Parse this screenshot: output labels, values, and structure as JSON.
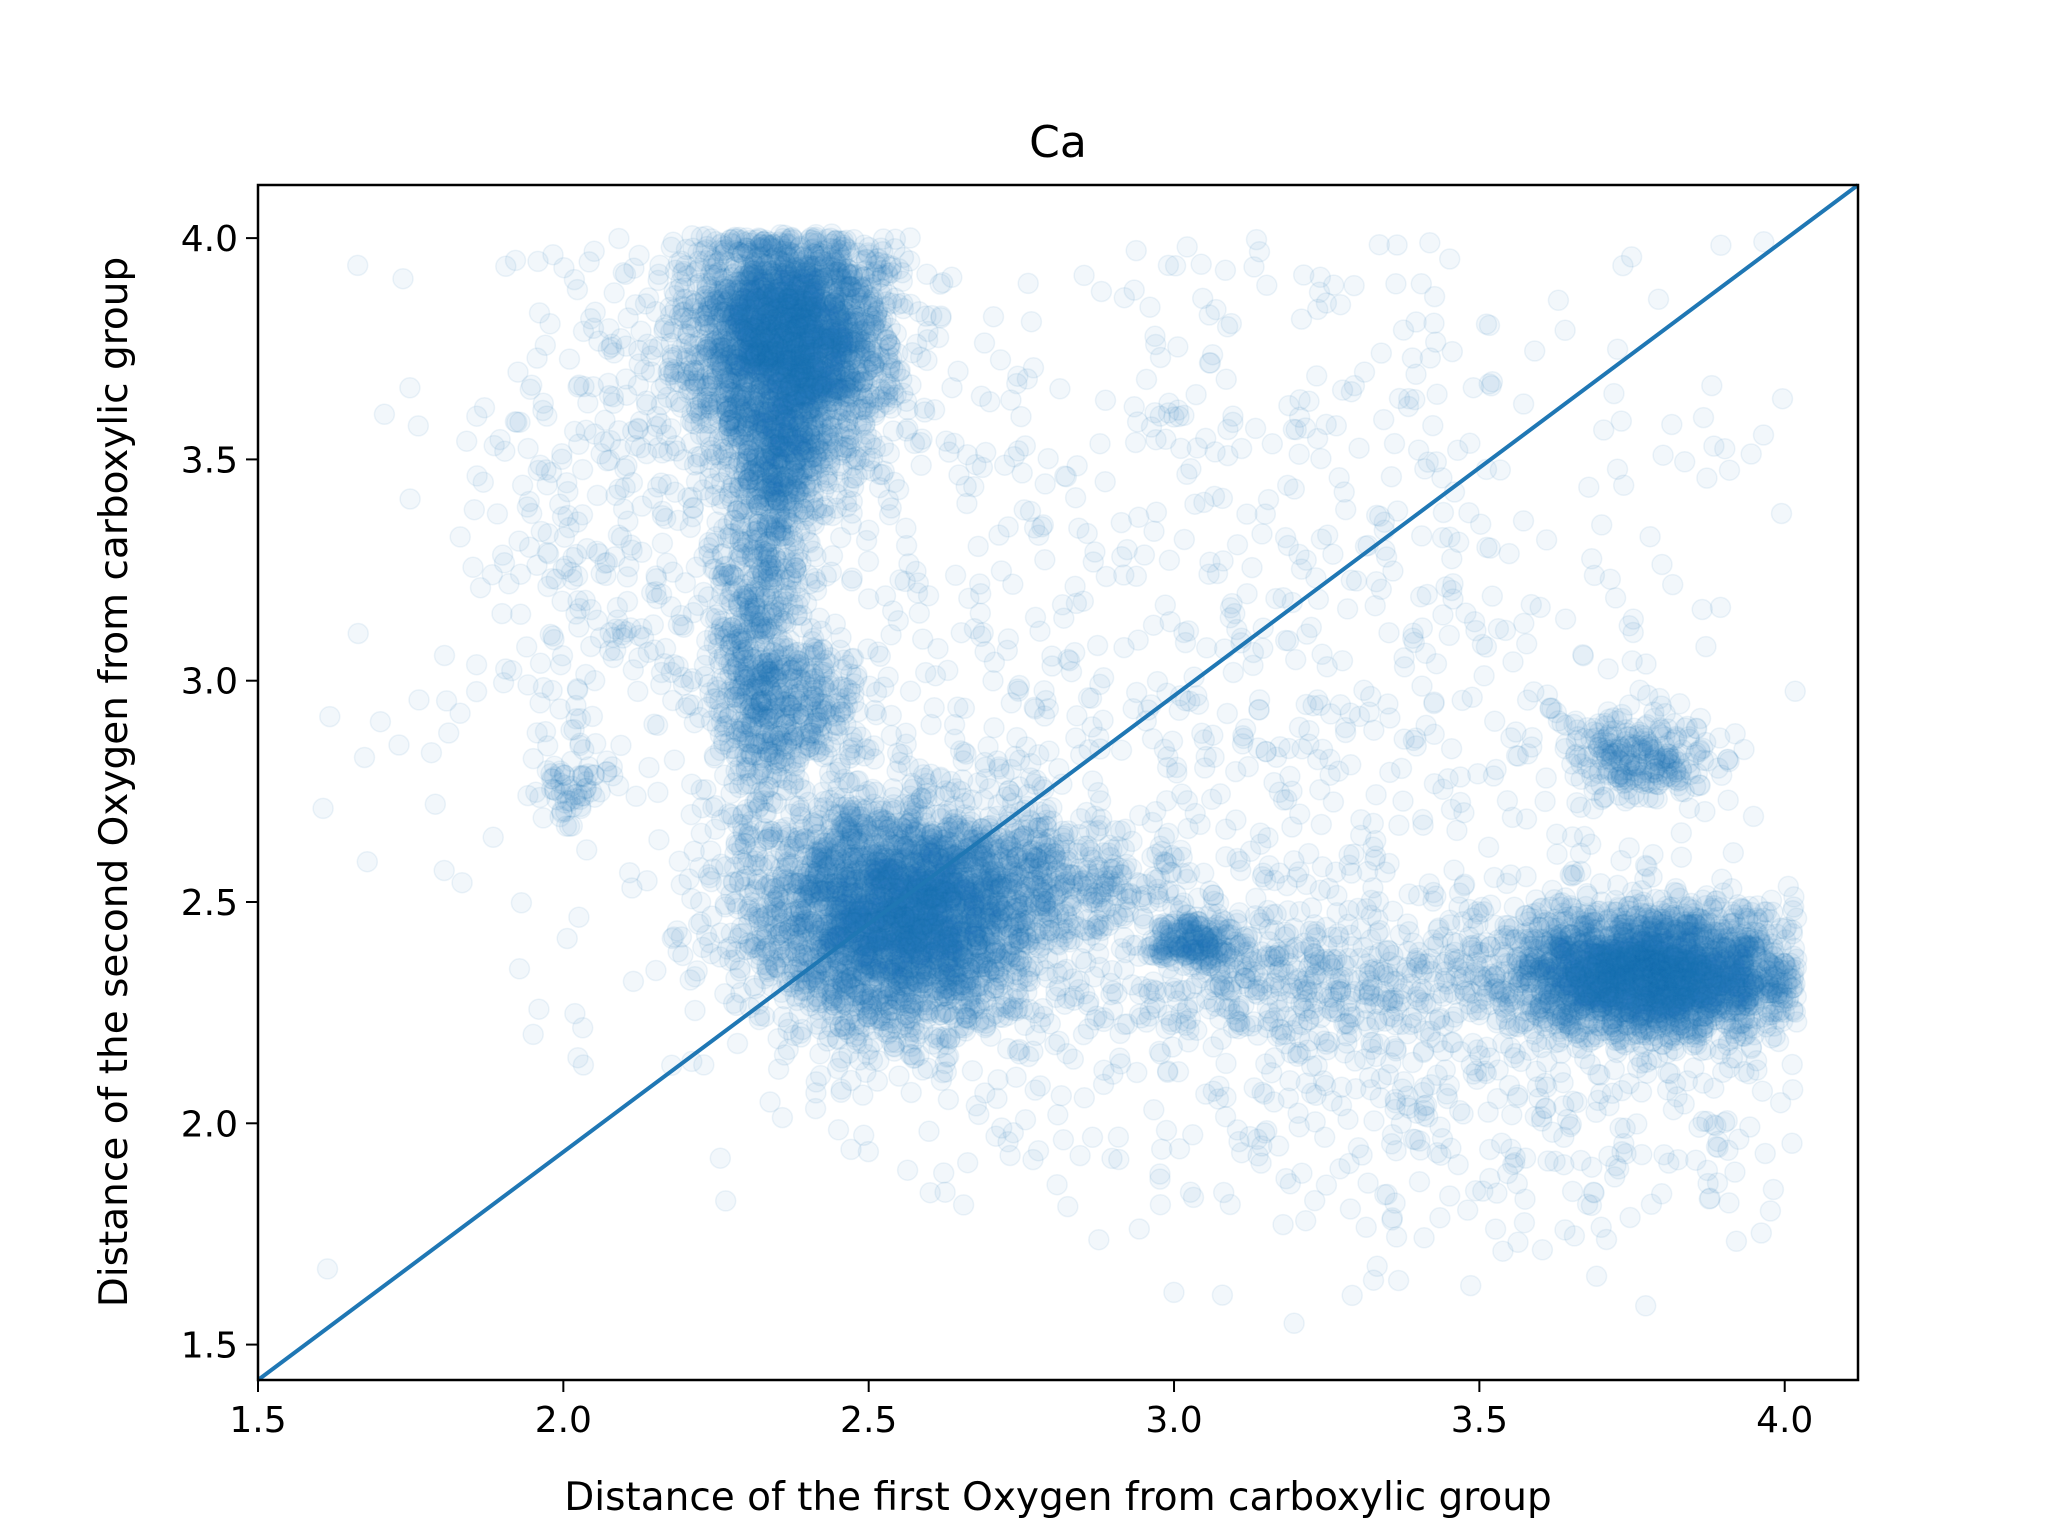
{
  "chart_data": {
    "type": "scatter",
    "title": "Ca",
    "xlabel": "Distance of the first Oxygen from carboxylic group",
    "ylabel": "Distance of the second Oxygen from carboxylic group",
    "xlim": [
      1.5,
      4.12
    ],
    "ylim": [
      1.42,
      4.12
    ],
    "xticks": [
      "1.5",
      "2.0",
      "2.5",
      "3.0",
      "3.5",
      "4.0"
    ],
    "yticks": [
      "1.5",
      "2.0",
      "2.5",
      "3.0",
      "3.5",
      "4.0"
    ],
    "grid": false,
    "colors": {
      "points": "#1f77b4",
      "line": "#1f77b4"
    },
    "marker_alpha": 0.06,
    "reference_line": {
      "x": [
        1.5,
        4.12
      ],
      "y": [
        1.42,
        4.12
      ]
    },
    "clusters": [
      {
        "cx": 2.37,
        "cy": 3.78,
        "sx": 0.08,
        "sy": 0.13,
        "n": 3000
      },
      {
        "cx": 2.36,
        "cy": 3.5,
        "sx": 0.04,
        "sy": 0.1,
        "n": 500
      },
      {
        "cx": 2.32,
        "cy": 3.1,
        "sx": 0.04,
        "sy": 0.25,
        "n": 700
      },
      {
        "cx": 2.38,
        "cy": 2.95,
        "sx": 0.06,
        "sy": 0.08,
        "n": 300
      },
      {
        "cx": 2.55,
        "cy": 2.47,
        "sx": 0.12,
        "sy": 0.13,
        "n": 3600
      },
      {
        "cx": 2.8,
        "cy": 2.55,
        "sx": 0.1,
        "sy": 0.06,
        "n": 300
      },
      {
        "cx": 3.03,
        "cy": 2.41,
        "sx": 0.04,
        "sy": 0.03,
        "n": 220
      },
      {
        "cx": 3.2,
        "cy": 2.33,
        "sx": 0.15,
        "sy": 0.08,
        "n": 400
      },
      {
        "cx": 3.78,
        "cy": 2.34,
        "sx": 0.12,
        "sy": 0.07,
        "n": 3000
      },
      {
        "cx": 3.76,
        "cy": 2.83,
        "sx": 0.06,
        "sy": 0.05,
        "n": 280
      },
      {
        "cx": 2.02,
        "cy": 2.76,
        "sx": 0.03,
        "sy": 0.05,
        "n": 60
      },
      {
        "cx": 2.1,
        "cy": 3.4,
        "sx": 0.15,
        "sy": 0.35,
        "n": 400
      },
      {
        "cx": 3.0,
        "cy": 3.0,
        "sx": 0.5,
        "sy": 0.6,
        "n": 1200
      },
      {
        "cx": 3.55,
        "cy": 2.1,
        "sx": 0.4,
        "sy": 0.2,
        "n": 500
      }
    ]
  }
}
